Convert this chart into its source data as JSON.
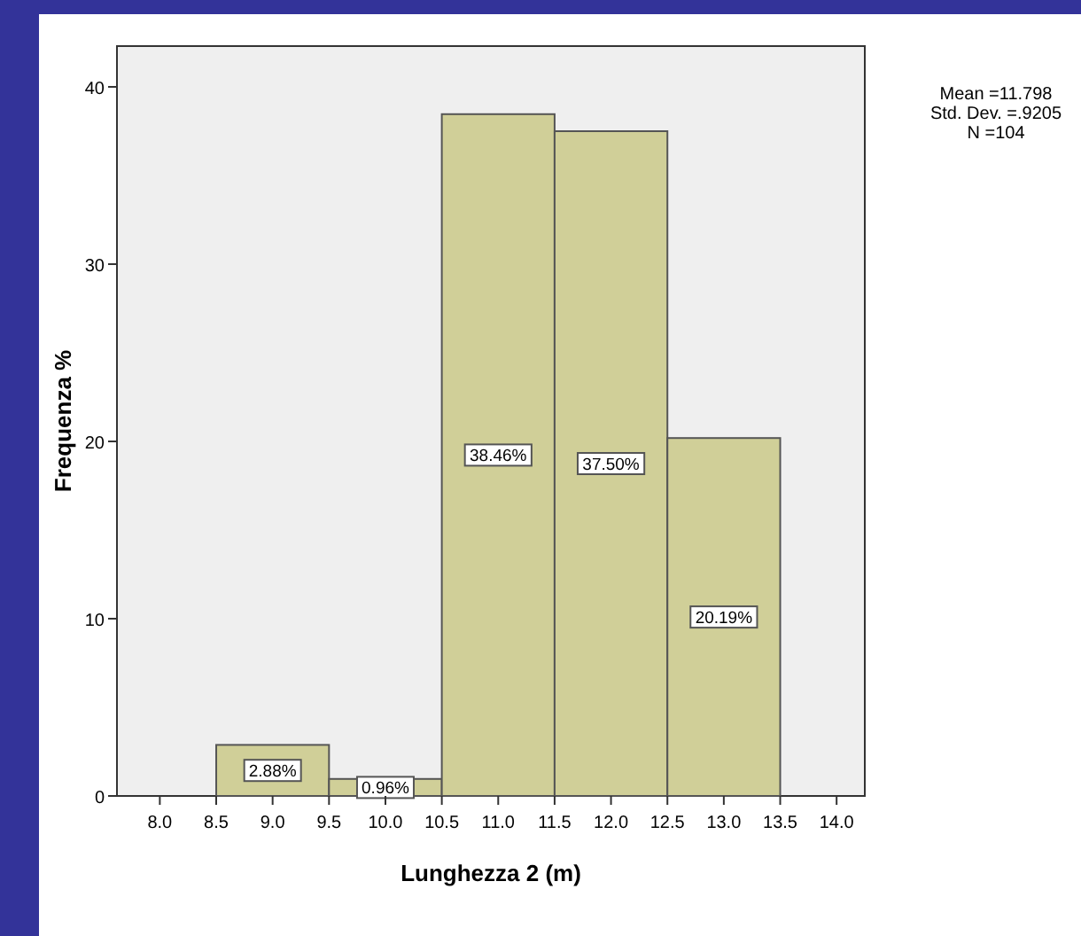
{
  "chart_data": {
    "type": "histogram",
    "xlabel": "Lunghezza 2 (m)",
    "ylabel": "Frequenza %",
    "bins": [
      8.5,
      9.5,
      10.5,
      11.5,
      12.5,
      13.5
    ],
    "values": [
      2.88,
      0.96,
      38.46,
      37.5,
      20.19
    ],
    "value_labels": [
      "2.88%",
      "0.96%",
      "38.46%",
      "37.50%",
      "20.19%"
    ],
    "color": "#d0cf98",
    "xlim": [
      7.62,
      14.25
    ],
    "xticks": [
      {
        "value": 8,
        "label": "8.0"
      },
      {
        "value": 8.5,
        "label": "8.5"
      },
      {
        "value": 9,
        "label": "9.0"
      },
      {
        "value": 9.5,
        "label": "9.5"
      },
      {
        "value": 10,
        "label": "10.0"
      },
      {
        "value": 10.5,
        "label": "10.5"
      },
      {
        "value": 11,
        "label": "11.0"
      },
      {
        "value": 11.5,
        "label": "11.5"
      },
      {
        "value": 12,
        "label": "12.0"
      },
      {
        "value": 12.5,
        "label": "12.5"
      },
      {
        "value": 13,
        "label": "13.0"
      },
      {
        "value": 13.5,
        "label": "13.5"
      },
      {
        "value": 14,
        "label": "14.0"
      }
    ],
    "ylim": [
      0,
      42.3
    ],
    "yticks": [
      0,
      10,
      20,
      30,
      40
    ],
    "annotations": [
      "Mean =11.798",
      "Std. Dev. =.9205",
      "N =104"
    ]
  }
}
